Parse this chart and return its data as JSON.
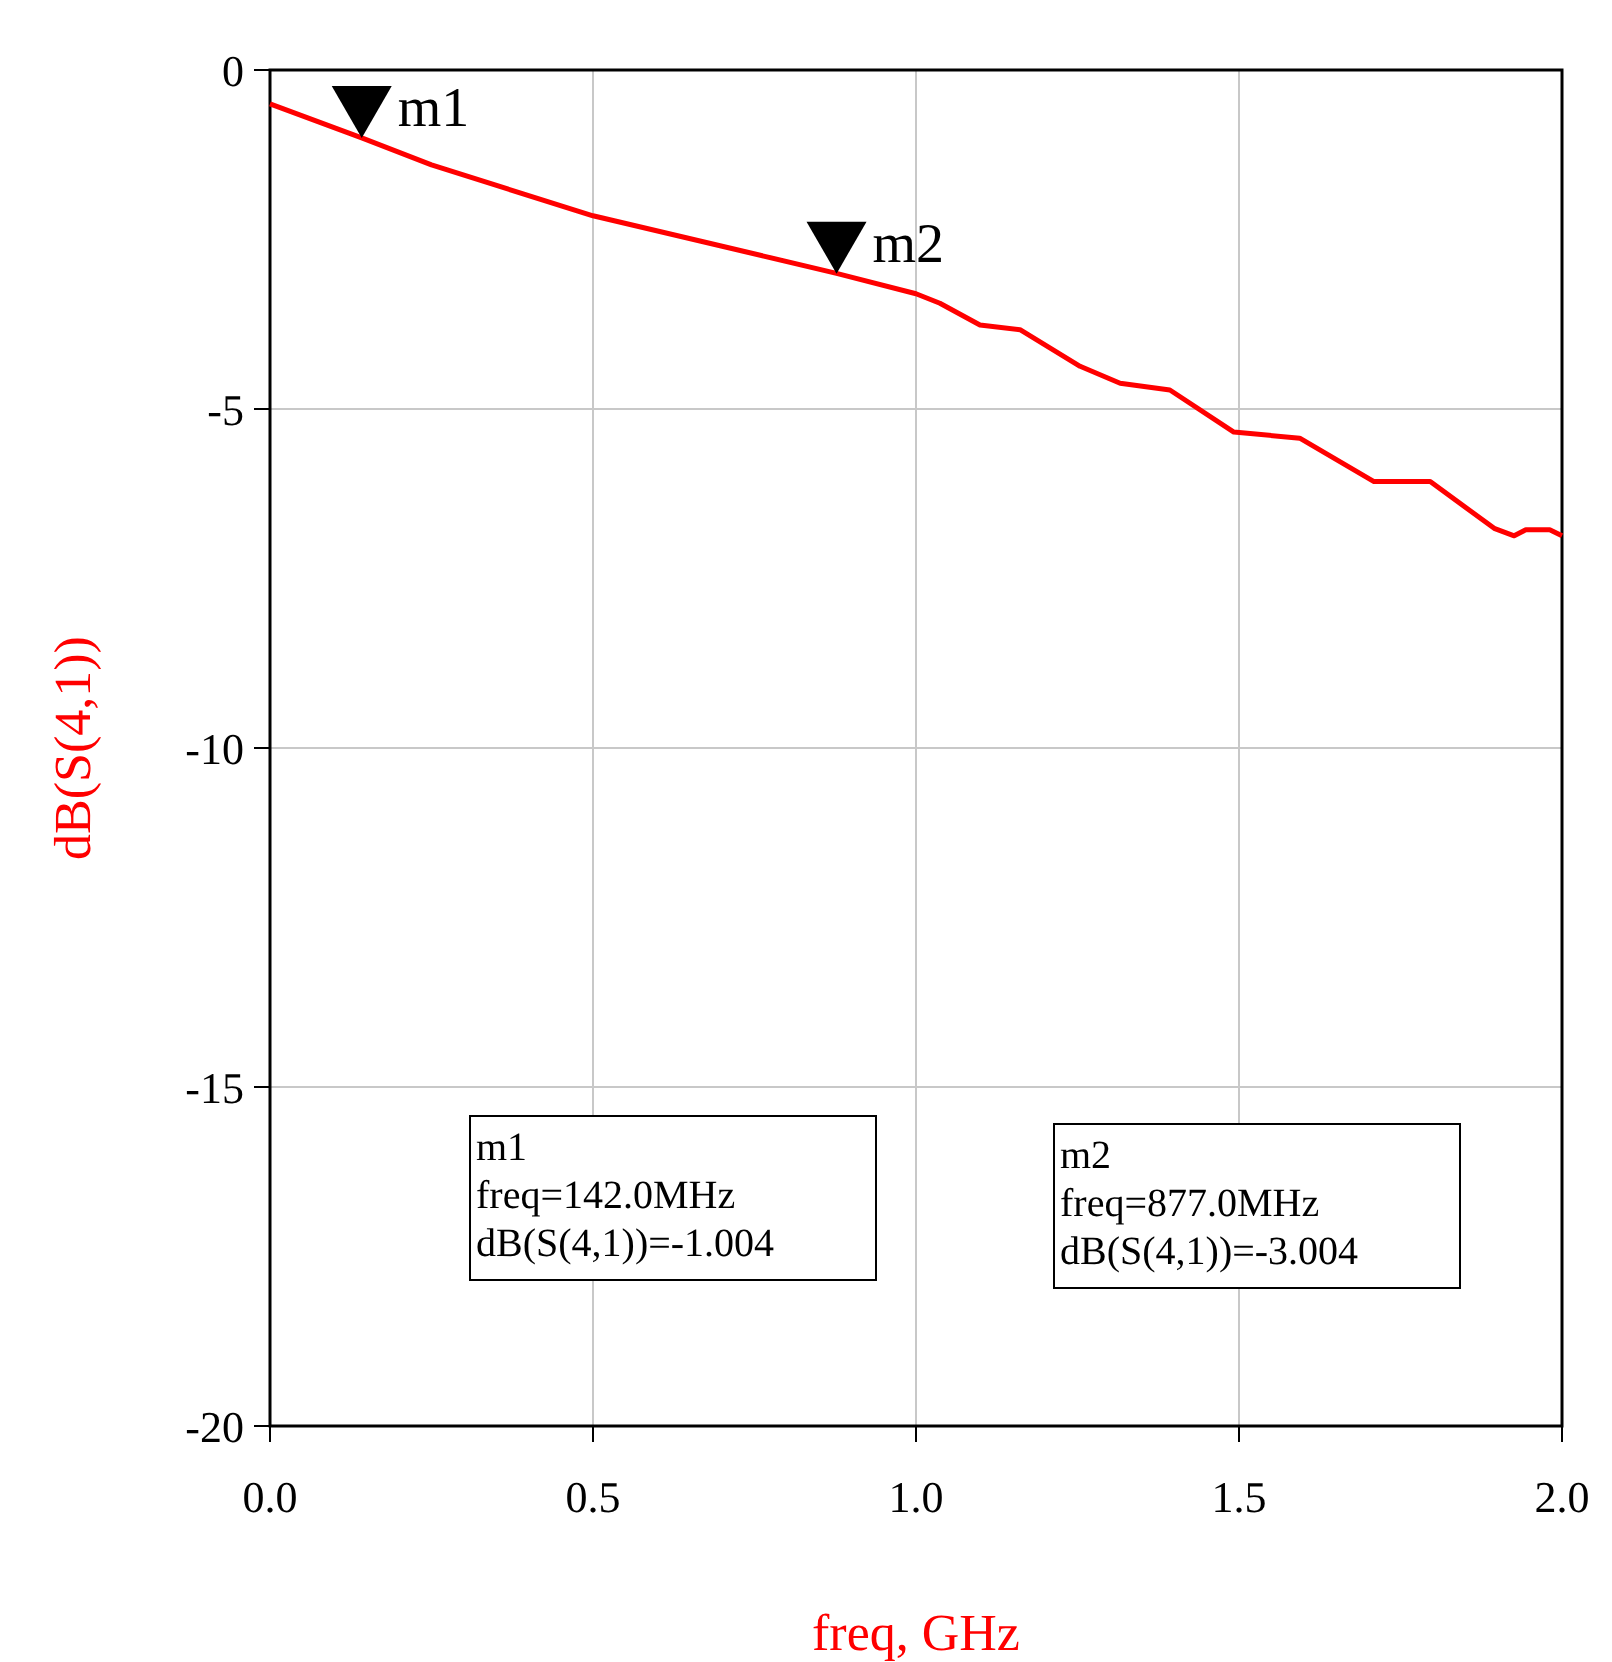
{
  "chart_data": {
    "type": "line",
    "xlabel": "freq, GHz",
    "ylabel": "dB(S(4,1))",
    "xlim": [
      0,
      2
    ],
    "ylim": [
      -20,
      0
    ],
    "xticks": [
      {
        "value": 0,
        "label": "0.0"
      },
      {
        "value": 0.5,
        "label": "0.5"
      },
      {
        "value": 1,
        "label": "1.0"
      },
      {
        "value": 1.5,
        "label": "1.5"
      },
      {
        "value": 2,
        "label": "2.0"
      }
    ],
    "yticks": [
      -20,
      -15,
      -10,
      -5,
      0
    ],
    "grid": true,
    "line_style": "solid",
    "series": [
      {
        "color": "#ff0000",
        "x": [
          0,
          0.142,
          0.25,
          0.5,
          0.7,
          0.877,
          1.0,
          1.037,
          1.099,
          1.161,
          1.254,
          1.316,
          1.393,
          1.492,
          1.594,
          1.709,
          1.796,
          1.895,
          1.926,
          1.944,
          1.981,
          2.0
        ],
        "values": [
          -0.5,
          -1.0,
          -1.4,
          -2.15,
          -2.6,
          -3.0,
          -3.3,
          -3.44,
          -3.76,
          -3.83,
          -4.37,
          -4.62,
          -4.72,
          -5.34,
          -5.43,
          -6.07,
          -6.07,
          -6.76,
          -6.87,
          -6.78,
          -6.78,
          -6.87
        ]
      }
    ],
    "annotations": [
      {
        "text": "m1",
        "x": 0.142,
        "y": -1.004
      },
      {
        "text": "m2",
        "x": 0.877,
        "y": -3.004
      },
      "m1\nfreq=142.0MHz\ndB(S(4,1))=-1.004",
      "m2\nfreq=877.0MHz\ndB(S(4,1))=-3.004"
    ]
  }
}
